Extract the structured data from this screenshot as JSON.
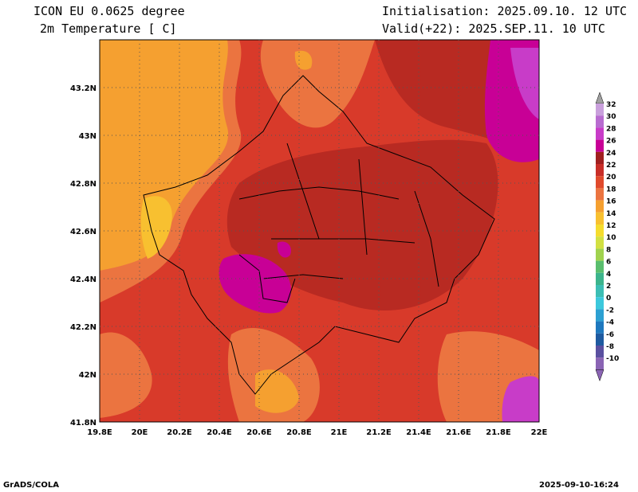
{
  "header": {
    "model": "ICON EU 0.0625 degree",
    "variable": "2m Temperature [ C]",
    "init": "Initialisation: 2025.09.10. 12 UTC",
    "valid": "Valid(+22): 2025.SEP.11. 10 UTC"
  },
  "footer": {
    "credit": "GrADS/COLA",
    "timestamp": "2025-09-10-16:24"
  },
  "map": {
    "x_ticks": [
      "19.8E",
      "20E",
      "20.2E",
      "20.4E",
      "20.6E",
      "20.8E",
      "21E",
      "21.2E",
      "21.4E",
      "21.6E",
      "21.8E",
      "22E"
    ],
    "y_ticks": [
      "43.2N",
      "43N",
      "42.8N",
      "42.6N",
      "42.4N",
      "42.2N",
      "42N",
      "41.8N"
    ]
  },
  "legend": {
    "levels": [
      "32",
      "30",
      "28",
      "26",
      "24",
      "22",
      "20",
      "18",
      "16",
      "14",
      "12",
      "10",
      "8",
      "6",
      "4",
      "2",
      "0",
      "-2",
      "-4",
      "-6",
      "-8",
      "-10"
    ],
    "colors": [
      "#c9a0dc",
      "#b86cd0",
      "#c83cc8",
      "#c80096",
      "#a02020",
      "#c82e28",
      "#e04a2c",
      "#eb7440",
      "#f5a030",
      "#f8c030",
      "#f5dc2e",
      "#d2e042",
      "#a0d24e",
      "#5abe6e",
      "#3cb48c",
      "#3cbeb4",
      "#3cc8dc",
      "#2ca0d2",
      "#1e78be",
      "#1e5aa0",
      "#5a50a0",
      "#8a64b4"
    ]
  }
}
